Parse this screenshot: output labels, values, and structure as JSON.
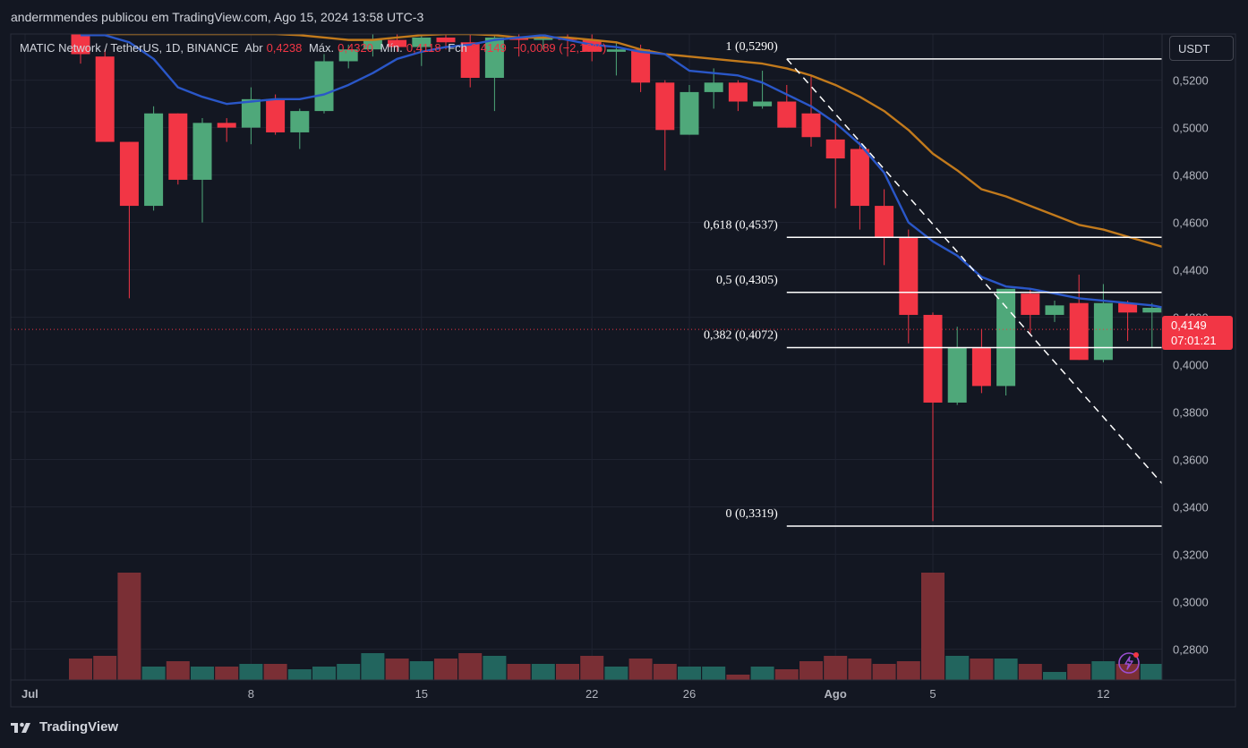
{
  "header": {
    "publisher": "andermmendes publicou em TradingView.com, Ago 15, 2024 13:58 UTC-3"
  },
  "legend": {
    "symbol": "MATIC Network / TetherUS, 1D, BINANCE",
    "open_label": "Abr",
    "open": "0,4238",
    "high_label": "Máx.",
    "high": "0,4320",
    "low_label": "Mín.",
    "low": "0,4118",
    "close_label": "Fch",
    "close": "0,4149",
    "change": "−0,0089 (−2,10%)"
  },
  "currency": "USDT",
  "last_price": {
    "price": "0,4149",
    "countdown": "07:01:21"
  },
  "footer": {
    "brand": "TradingView"
  },
  "colors": {
    "up": "#4fa87a",
    "down": "#f23645",
    "ma_fast": "#2a57c8",
    "ma_slow": "#c27a1c",
    "vol_up": "#22655e",
    "vol_down": "#7a2f35",
    "fib": "#ffffff"
  },
  "chart_data": {
    "type": "candlestick",
    "ylim": [
      0.2715,
      0.5395
    ],
    "y_ticks": [
      "0,5200",
      "0,5000",
      "0,4800",
      "0,4600",
      "0,4400",
      "0,4200",
      "0,4000",
      "0,3800",
      "0,3600",
      "0,3400",
      "0,3200",
      "0,3000",
      "0,2800"
    ],
    "y_tick_values": [
      0.52,
      0.5,
      0.48,
      0.46,
      0.44,
      0.42,
      0.4,
      0.38,
      0.36,
      0.34,
      0.32,
      0.3,
      0.28
    ],
    "x_labels": [
      {
        "label": "Jul",
        "date": "2024-07-01"
      },
      {
        "label": "8",
        "date": "2024-07-08"
      },
      {
        "label": "15",
        "date": "2024-07-15"
      },
      {
        "label": "22",
        "date": "2024-07-22"
      },
      {
        "label": "26",
        "date": "2024-07-26"
      },
      {
        "label": "Ago",
        "date": "2024-08-01"
      },
      {
        "label": "5",
        "date": "2024-08-05"
      },
      {
        "label": "12",
        "date": "2024-08-12"
      }
    ],
    "candles": [
      {
        "date": "2024-07-01",
        "o": 0.5395,
        "h": 0.5395,
        "l": 0.527,
        "c": 0.531,
        "v": 0.08
      },
      {
        "date": "2024-07-02",
        "o": 0.53,
        "h": 0.533,
        "l": 0.494,
        "c": 0.494,
        "v": 0.09
      },
      {
        "date": "2024-07-03",
        "o": 0.494,
        "h": 0.494,
        "l": 0.428,
        "c": 0.467,
        "v": 0.4
      },
      {
        "date": "2024-07-04",
        "o": 0.467,
        "h": 0.509,
        "l": 0.465,
        "c": 0.506,
        "v": 0.05
      },
      {
        "date": "2024-07-05",
        "o": 0.506,
        "h": 0.506,
        "l": 0.476,
        "c": 0.478,
        "v": 0.07
      },
      {
        "date": "2024-07-06",
        "o": 0.478,
        "h": 0.504,
        "l": 0.46,
        "c": 0.502,
        "v": 0.05
      },
      {
        "date": "2024-07-07",
        "o": 0.502,
        "h": 0.504,
        "l": 0.494,
        "c": 0.5,
        "v": 0.05
      },
      {
        "date": "2024-07-08",
        "o": 0.5,
        "h": 0.517,
        "l": 0.493,
        "c": 0.512,
        "v": 0.06
      },
      {
        "date": "2024-07-09",
        "o": 0.512,
        "h": 0.514,
        "l": 0.497,
        "c": 0.498,
        "v": 0.06
      },
      {
        "date": "2024-07-10",
        "o": 0.498,
        "h": 0.508,
        "l": 0.491,
        "c": 0.507,
        "v": 0.04
      },
      {
        "date": "2024-07-11",
        "o": 0.507,
        "h": 0.531,
        "l": 0.506,
        "c": 0.528,
        "v": 0.05
      },
      {
        "date": "2024-07-12",
        "o": 0.528,
        "h": 0.535,
        "l": 0.525,
        "c": 0.533,
        "v": 0.06
      },
      {
        "date": "2024-07-13",
        "o": 0.533,
        "h": 0.5395,
        "l": 0.53,
        "c": 0.537,
        "v": 0.1
      },
      {
        "date": "2024-07-14",
        "o": 0.537,
        "h": 0.5395,
        "l": 0.532,
        "c": 0.534,
        "v": 0.08
      },
      {
        "date": "2024-07-15",
        "o": 0.534,
        "h": 0.5395,
        "l": 0.526,
        "c": 0.538,
        "v": 0.07
      },
      {
        "date": "2024-07-16",
        "o": 0.538,
        "h": 0.5395,
        "l": 0.533,
        "c": 0.536,
        "v": 0.08
      },
      {
        "date": "2024-07-17",
        "o": 0.536,
        "h": 0.5395,
        "l": 0.517,
        "c": 0.521,
        "v": 0.1
      },
      {
        "date": "2024-07-18",
        "o": 0.521,
        "h": 0.5395,
        "l": 0.507,
        "c": 0.538,
        "v": 0.09
      },
      {
        "date": "2024-07-19",
        "o": 0.538,
        "h": 0.5395,
        "l": 0.53,
        "c": 0.537,
        "v": 0.06
      },
      {
        "date": "2024-07-20",
        "o": 0.537,
        "h": 0.5395,
        "l": 0.533,
        "c": 0.538,
        "v": 0.06
      },
      {
        "date": "2024-07-21",
        "o": 0.538,
        "h": 0.5395,
        "l": 0.53,
        "c": 0.537,
        "v": 0.06
      },
      {
        "date": "2024-07-22",
        "o": 0.537,
        "h": 0.5395,
        "l": 0.528,
        "c": 0.532,
        "v": 0.09
      },
      {
        "date": "2024-07-23",
        "o": 0.532,
        "h": 0.536,
        "l": 0.522,
        "c": 0.533,
        "v": 0.05
      },
      {
        "date": "2024-07-24",
        "o": 0.533,
        "h": 0.535,
        "l": 0.515,
        "c": 0.519,
        "v": 0.08
      },
      {
        "date": "2024-07-25",
        "o": 0.519,
        "h": 0.52,
        "l": 0.482,
        "c": 0.499,
        "v": 0.06
      },
      {
        "date": "2024-07-26",
        "o": 0.497,
        "h": 0.518,
        "l": 0.497,
        "c": 0.515,
        "v": 0.05
      },
      {
        "date": "2024-07-27",
        "o": 0.515,
        "h": 0.525,
        "l": 0.508,
        "c": 0.519,
        "v": 0.05
      },
      {
        "date": "2024-07-28",
        "o": 0.519,
        "h": 0.52,
        "l": 0.507,
        "c": 0.511,
        "v": 0.02
      },
      {
        "date": "2024-07-29",
        "o": 0.509,
        "h": 0.524,
        "l": 0.508,
        "c": 0.511,
        "v": 0.05
      },
      {
        "date": "2024-07-30",
        "o": 0.511,
        "h": 0.518,
        "l": 0.5,
        "c": 0.5,
        "v": 0.04
      },
      {
        "date": "2024-07-31",
        "o": 0.506,
        "h": 0.522,
        "l": 0.492,
        "c": 0.496,
        "v": 0.07
      },
      {
        "date": "2024-08-01",
        "o": 0.495,
        "h": 0.503,
        "l": 0.466,
        "c": 0.487,
        "v": 0.09
      },
      {
        "date": "2024-08-02",
        "o": 0.491,
        "h": 0.494,
        "l": 0.457,
        "c": 0.467,
        "v": 0.08
      },
      {
        "date": "2024-08-03",
        "o": 0.467,
        "h": 0.474,
        "l": 0.442,
        "c": 0.454,
        "v": 0.06
      },
      {
        "date": "2024-08-04",
        "o": 0.454,
        "h": 0.457,
        "l": 0.409,
        "c": 0.421,
        "v": 0.07
      },
      {
        "date": "2024-08-05",
        "o": 0.421,
        "h": 0.422,
        "l": 0.334,
        "c": 0.384,
        "v": 0.4
      },
      {
        "date": "2024-08-06",
        "o": 0.384,
        "h": 0.416,
        "l": 0.383,
        "c": 0.407,
        "v": 0.09
      },
      {
        "date": "2024-08-07",
        "o": 0.407,
        "h": 0.415,
        "l": 0.388,
        "c": 0.391,
        "v": 0.08
      },
      {
        "date": "2024-08-08",
        "o": 0.391,
        "h": 0.432,
        "l": 0.387,
        "c": 0.432,
        "v": 0.08
      },
      {
        "date": "2024-08-09",
        "o": 0.43,
        "h": 0.432,
        "l": 0.413,
        "c": 0.421,
        "v": 0.06
      },
      {
        "date": "2024-08-10",
        "o": 0.421,
        "h": 0.427,
        "l": 0.418,
        "c": 0.425,
        "v": 0.03
      },
      {
        "date": "2024-08-11",
        "o": 0.426,
        "h": 0.438,
        "l": 0.402,
        "c": 0.402,
        "v": 0.06
      },
      {
        "date": "2024-08-12",
        "o": 0.402,
        "h": 0.434,
        "l": 0.401,
        "c": 0.426,
        "v": 0.07
      },
      {
        "date": "2024-08-13",
        "o": 0.426,
        "h": 0.427,
        "l": 0.41,
        "c": 0.422,
        "v": 0.06
      },
      {
        "date": "2024-08-14",
        "o": 0.422,
        "h": 0.426,
        "l": 0.407,
        "c": 0.424,
        "v": 0.06
      },
      {
        "date": "2024-08-15",
        "o": 0.4238,
        "h": 0.432,
        "l": 0.4118,
        "c": 0.4149,
        "v": 0.04
      }
    ],
    "ma_fast": [
      0.539,
      0.539,
      0.536,
      0.529,
      0.517,
      0.513,
      0.51,
      0.511,
      0.512,
      0.512,
      0.514,
      0.518,
      0.523,
      0.529,
      0.532,
      0.534,
      0.535,
      0.537,
      0.538,
      0.539,
      0.537,
      0.535,
      0.534,
      0.532,
      0.531,
      0.524,
      0.523,
      0.522,
      0.519,
      0.514,
      0.509,
      0.502,
      0.493,
      0.481,
      0.46,
      0.452,
      0.446,
      0.437,
      0.433,
      0.432,
      0.43,
      0.428,
      0.427,
      0.426,
      0.425,
      0.423
    ],
    "ma_slow": [
      0.5395,
      0.5395,
      0.5395,
      0.5395,
      0.5395,
      0.5395,
      0.5395,
      0.5395,
      0.5395,
      0.539,
      0.538,
      0.537,
      0.537,
      0.538,
      0.539,
      0.5395,
      0.5395,
      0.539,
      0.538,
      0.538,
      0.538,
      0.537,
      0.536,
      0.533,
      0.531,
      0.53,
      0.529,
      0.528,
      0.527,
      0.525,
      0.522,
      0.518,
      0.513,
      0.507,
      0.499,
      0.489,
      0.482,
      0.474,
      0.471,
      0.467,
      0.463,
      0.459,
      0.457,
      0.454,
      0.451,
      0.448
    ],
    "fib": {
      "from_date": "2024-07-30",
      "to_date": "2024-08-15",
      "levels": [
        {
          "label": "1 (0,5290)",
          "value": 0.529
        },
        {
          "label": "0,618 (0,4537)",
          "value": 0.4537
        },
        {
          "label": "0,5 (0,4305)",
          "value": 0.4305
        },
        {
          "label": "0,382 (0,4072)",
          "value": 0.4072
        },
        {
          "label": "0 (0,3319)",
          "value": 0.3319
        }
      ]
    },
    "last_price_line": 0.4149
  }
}
